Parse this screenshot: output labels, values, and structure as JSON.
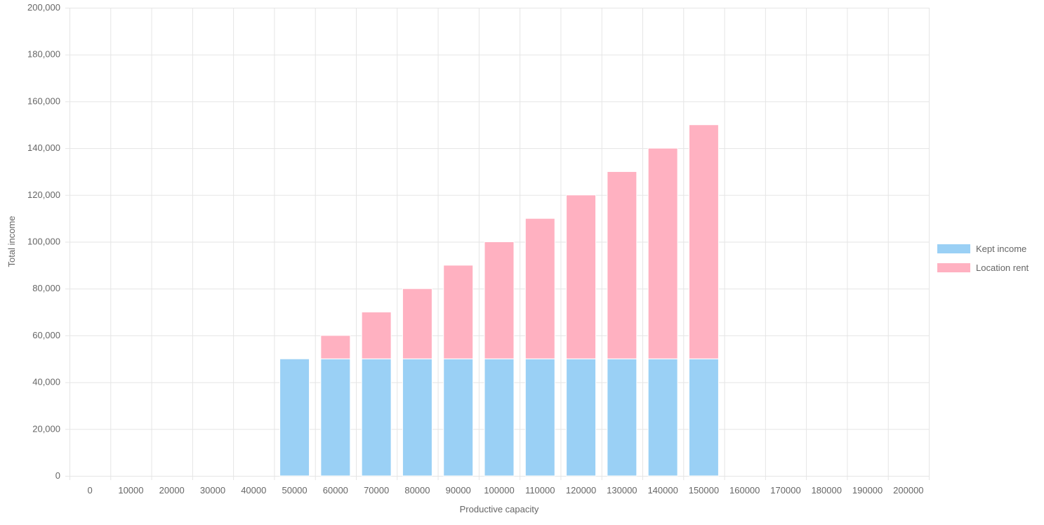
{
  "chart_data": {
    "type": "bar",
    "stacked": true,
    "categories": [
      "0",
      "10000",
      "20000",
      "30000",
      "40000",
      "50000",
      "60000",
      "70000",
      "80000",
      "90000",
      "100000",
      "110000",
      "120000",
      "130000",
      "140000",
      "150000",
      "160000",
      "170000",
      "180000",
      "190000",
      "200000"
    ],
    "series": [
      {
        "name": "Kept income",
        "color": "#9ad0f5",
        "values": [
          0,
          0,
          0,
          0,
          0,
          50000,
          50000,
          50000,
          50000,
          50000,
          50000,
          50000,
          50000,
          50000,
          50000,
          50000,
          0,
          0,
          0,
          0,
          0
        ]
      },
      {
        "name": "Location rent",
        "color": "#ffb1c1",
        "values": [
          0,
          0,
          0,
          0,
          0,
          0,
          10000,
          20000,
          30000,
          40000,
          50000,
          60000,
          70000,
          80000,
          90000,
          100000,
          0,
          0,
          0,
          0,
          0
        ]
      }
    ],
    "xlabel": "Productive capacity",
    "ylabel": "Total income",
    "ylim": [
      0,
      200000
    ],
    "yticks": [
      "0",
      "20,000",
      "40,000",
      "60,000",
      "80,000",
      "100,000",
      "120,000",
      "140,000",
      "160,000",
      "180,000",
      "200,000"
    ],
    "grid": true,
    "legend_position": "right"
  }
}
